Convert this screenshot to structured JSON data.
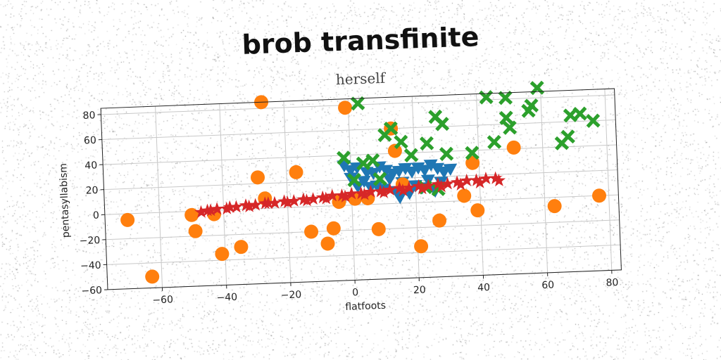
{
  "chart_data": {
    "type": "scatter",
    "title": "brob transfinite",
    "subtitle": "herself",
    "xlabel": "flatfoots",
    "ylabel": "pentasyllabism",
    "xlim": [
      -77,
      83
    ],
    "ylim": [
      -60,
      85
    ],
    "xticks": [
      "−60",
      "−40",
      "−20",
      "0",
      "20",
      "40",
      "60",
      "80"
    ],
    "xtick_values": [
      -60,
      -40,
      -20,
      0,
      20,
      40,
      60,
      80
    ],
    "yticks": [
      "−60",
      "−40",
      "−20",
      "0",
      "20",
      "40",
      "60",
      "80"
    ],
    "ytick_values": [
      -60,
      -40,
      -20,
      0,
      20,
      40,
      60,
      80
    ],
    "grid": true,
    "colors": {
      "blue": "#1f77b4",
      "orange": "#ff7f0e",
      "green": "#2ca02c",
      "red": "#d62728"
    },
    "series": [
      {
        "marker": "triangle-down",
        "color": "#1f77b4",
        "points": [
          [
            -2,
            32
          ],
          [
            0,
            28
          ],
          [
            2,
            30
          ],
          [
            5,
            26
          ],
          [
            7,
            25
          ],
          [
            9,
            30
          ],
          [
            11,
            27
          ],
          [
            13,
            24
          ],
          [
            15,
            26
          ],
          [
            17,
            28
          ],
          [
            19,
            25
          ],
          [
            21,
            28
          ],
          [
            23,
            26
          ],
          [
            25,
            30
          ],
          [
            27,
            27
          ],
          [
            29,
            24
          ],
          [
            31,
            26
          ],
          [
            0,
            22
          ],
          [
            4,
            19
          ],
          [
            8,
            15
          ],
          [
            12,
            20
          ],
          [
            16,
            17
          ],
          [
            20,
            14
          ],
          [
            24,
            18
          ],
          [
            28,
            16
          ],
          [
            14,
            10
          ],
          [
            18,
            8
          ],
          [
            22,
            12
          ],
          [
            26,
            9
          ],
          [
            10,
            12
          ],
          [
            6,
            14
          ],
          [
            2,
            15
          ],
          [
            15,
            5
          ]
        ]
      },
      {
        "marker": "circle",
        "color": "#ff7f0e",
        "points": [
          [
            -70,
            -5
          ],
          [
            -63,
            -51
          ],
          [
            -50,
            -3
          ],
          [
            -49,
            -16
          ],
          [
            -43,
            -3
          ],
          [
            -41,
            -35
          ],
          [
            -35,
            -30
          ],
          [
            -29,
            25
          ],
          [
            -27,
            85
          ],
          [
            -27,
            8
          ],
          [
            -17,
            28
          ],
          [
            -13,
            -20
          ],
          [
            -8,
            -30
          ],
          [
            -6,
            -18
          ],
          [
            -4,
            3
          ],
          [
            -1,
            78
          ],
          [
            1,
            5
          ],
          [
            5,
            5
          ],
          [
            8,
            -20
          ],
          [
            13,
            60
          ],
          [
            14,
            42
          ],
          [
            16,
            15
          ],
          [
            21,
            -35
          ],
          [
            27,
            -15
          ],
          [
            35,
            4
          ],
          [
            38,
            30
          ],
          [
            39,
            -8
          ],
          [
            51,
            41
          ],
          [
            63,
            -7
          ],
          [
            77,
            0
          ]
        ]
      },
      {
        "marker": "x",
        "color": "#2ca02c",
        "points": [
          [
            3,
            81
          ],
          [
            -2,
            38
          ],
          [
            1,
            20
          ],
          [
            4,
            33
          ],
          [
            7,
            35
          ],
          [
            9,
            20
          ],
          [
            11,
            55
          ],
          [
            13,
            60
          ],
          [
            16,
            49
          ],
          [
            19,
            38
          ],
          [
            24,
            47
          ],
          [
            27,
            68
          ],
          [
            29,
            62
          ],
          [
            30,
            38
          ],
          [
            38,
            38
          ],
          [
            43,
            82
          ],
          [
            45,
            46
          ],
          [
            49,
            81
          ],
          [
            49,
            65
          ],
          [
            50,
            57
          ],
          [
            56,
            70
          ],
          [
            57,
            74
          ],
          [
            59,
            88
          ],
          [
            66,
            43
          ],
          [
            68,
            48
          ],
          [
            69,
            65
          ],
          [
            72,
            66
          ],
          [
            76,
            60
          ],
          [
            23,
            12
          ],
          [
            27,
            10
          ]
        ]
      },
      {
        "marker": "star",
        "color": "#d62728",
        "points": [
          [
            -45,
            0
          ],
          [
            -42,
            1
          ],
          [
            -39,
            1
          ],
          [
            -36,
            2
          ],
          [
            -33,
            3
          ],
          [
            -30,
            3
          ],
          [
            -27,
            4
          ],
          [
            -24,
            4
          ],
          [
            -21,
            5
          ],
          [
            -18,
            5
          ],
          [
            -15,
            6
          ],
          [
            -12,
            6
          ],
          [
            -9,
            7
          ],
          [
            -6,
            8
          ],
          [
            -3,
            8
          ],
          [
            0,
            9
          ],
          [
            3,
            9
          ],
          [
            6,
            10
          ],
          [
            9,
            10
          ],
          [
            12,
            11
          ],
          [
            15,
            12
          ],
          [
            18,
            12
          ],
          [
            21,
            13
          ],
          [
            24,
            13
          ],
          [
            27,
            14
          ],
          [
            30,
            14
          ],
          [
            33,
            15
          ],
          [
            36,
            16
          ],
          [
            39,
            16
          ],
          [
            42,
            17
          ],
          [
            45,
            17
          ],
          [
            -47,
            -1
          ],
          [
            -44,
            0
          ],
          [
            -38,
            2
          ],
          [
            -32,
            2
          ],
          [
            -26,
            4
          ],
          [
            -20,
            4
          ],
          [
            -14,
            5
          ],
          [
            -8,
            6
          ],
          [
            -2,
            7
          ],
          [
            4,
            8
          ],
          [
            10,
            9
          ],
          [
            16,
            10
          ],
          [
            22,
            11
          ],
          [
            28,
            12
          ],
          [
            34,
            13
          ],
          [
            40,
            14
          ],
          [
            46,
            15
          ]
        ]
      }
    ]
  }
}
